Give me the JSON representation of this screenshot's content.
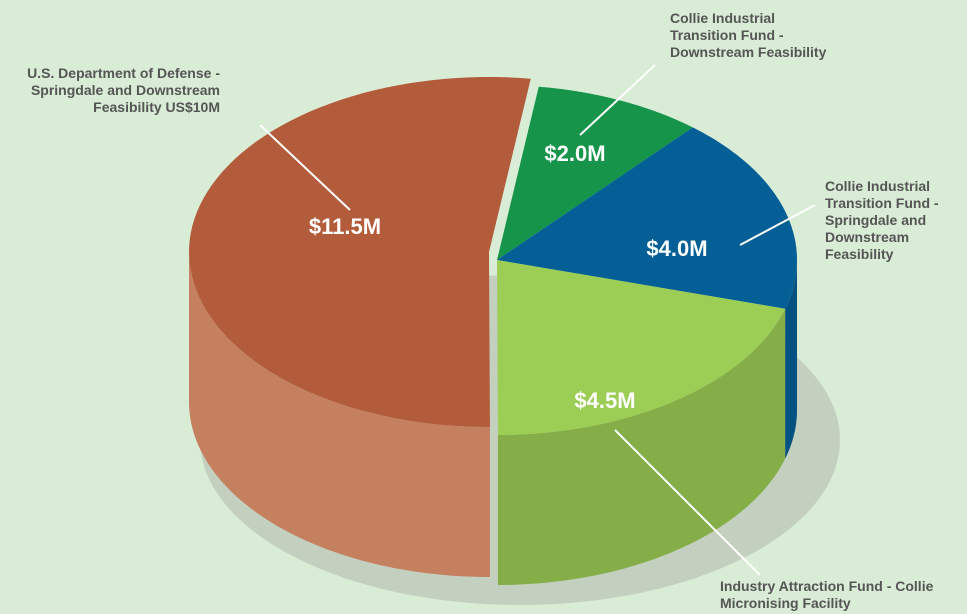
{
  "chart_data": {
    "type": "pie",
    "categories": [
      "Collie Industrial Transition Fund - Downstream Feasibility",
      "Collie Industrial Transition Fund - Springdale and Downstream Feasibility",
      "Industry Attraction Fund - Collie Micronising Facility",
      "U.S. Department of Defense - Springdale and Downstream Feasibility US$10M"
    ],
    "values": [
      2.0,
      4.0,
      4.5,
      11.5
    ],
    "value_labels": [
      "$2.0M",
      "$4.0M",
      "$4.5M",
      "$11.5M"
    ],
    "colors": [
      "#15944a",
      "#045f96",
      "#9ccd55",
      "#b35c3c"
    ]
  }
}
